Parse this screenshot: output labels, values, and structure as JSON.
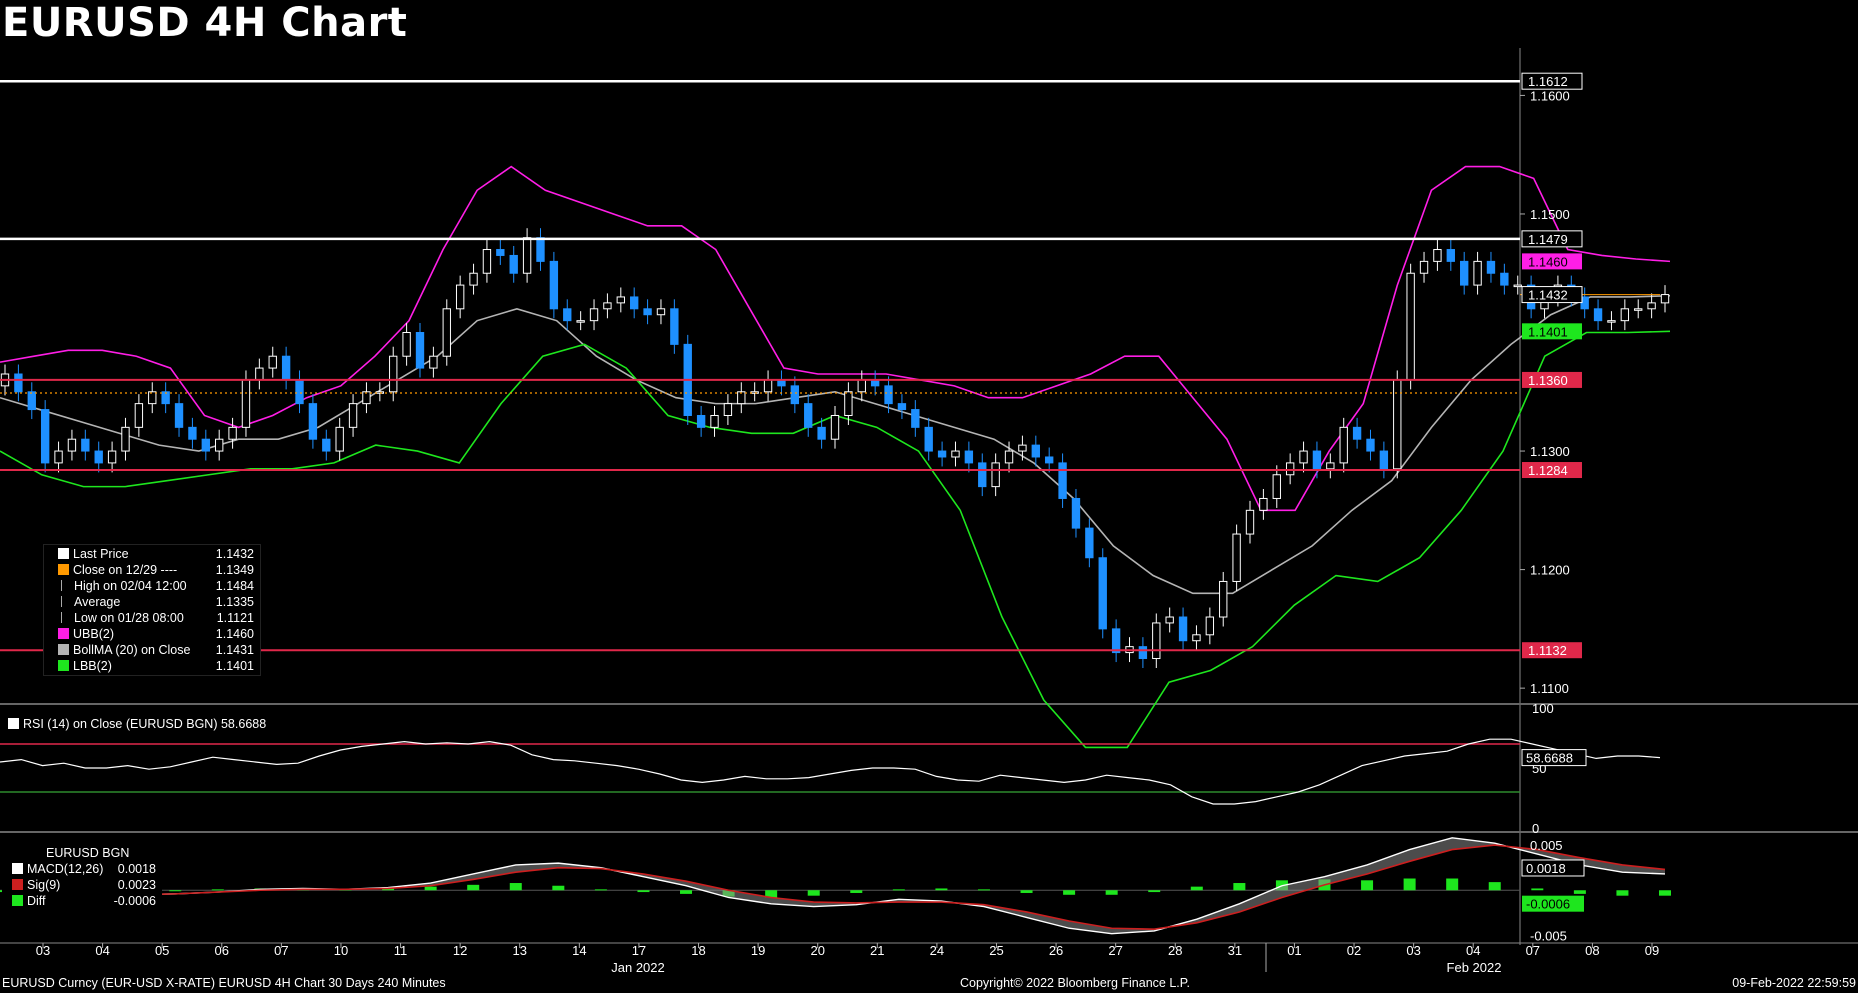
{
  "title": "EURUSD 4H Chart",
  "colors": {
    "bg": "#000000",
    "up": "#ffffff",
    "down": "#1e90ff",
    "ubb": "#ff1ee6",
    "lbb": "#1ee61e",
    "boll": "#b4b4b4",
    "level": "#e0284a",
    "white_level": "#ffffff",
    "rsi": "#ffffff",
    "macd": "#ffffff",
    "sig": "#cc1f1f",
    "diff": "#1ee61e"
  },
  "chart_data": [
    {
      "type": "candlestick",
      "title": "EURUSD 4H Chart",
      "x_ticks": [
        "03",
        "04",
        "05",
        "06",
        "07",
        "10",
        "11",
        "12",
        "13",
        "14",
        "17",
        "18",
        "19",
        "20",
        "21",
        "24",
        "25",
        "26",
        "27",
        "28",
        "31",
        "01",
        "02",
        "03",
        "04",
        "07",
        "08",
        "09"
      ],
      "x_month_labels": [
        "Jan 2022",
        "Feb 2022"
      ],
      "ylim": [
        1.109,
        1.164
      ],
      "y_ticks": [
        1.11,
        1.12,
        1.13,
        1.15,
        1.16
      ],
      "y_tick_labels": [
        "1.1100",
        "1.1200",
        "1.1300",
        "1.1500",
        "1.1600"
      ],
      "horizontal_levels": [
        {
          "value": 1.1612,
          "label": "1.1612",
          "color": "white"
        },
        {
          "value": 1.1479,
          "label": "1.1479",
          "color": "white"
        },
        {
          "value": 1.136,
          "label": "1.1360",
          "color": "red"
        },
        {
          "value": 1.1284,
          "label": "1.1284",
          "color": "red"
        },
        {
          "value": 1.1132,
          "label": "1.1132",
          "color": "red"
        }
      ],
      "price_tags": [
        {
          "value": 1.146,
          "label": "1.1460",
          "color": "magenta"
        },
        {
          "value": 1.1432,
          "label": "1.1432",
          "color": "white"
        },
        {
          "value": 1.1401,
          "label": "1.1401",
          "color": "green"
        }
      ],
      "average_line": 1.1349,
      "close": [
        1.1365,
        1.135,
        1.1335,
        1.129,
        1.13,
        1.131,
        1.13,
        1.129,
        1.13,
        1.132,
        1.134,
        1.135,
        1.134,
        1.132,
        1.131,
        1.13,
        1.131,
        1.132,
        1.136,
        1.137,
        1.138,
        1.136,
        1.134,
        1.131,
        1.13,
        1.132,
        1.134,
        1.135,
        1.135,
        1.138,
        1.14,
        1.137,
        1.138,
        1.142,
        1.144,
        1.145,
        1.147,
        1.1465,
        1.145,
        1.148,
        1.146,
        1.142,
        1.141,
        1.141,
        1.142,
        1.1425,
        1.143,
        1.142,
        1.1415,
        1.142,
        1.139,
        1.133,
        1.132,
        1.133,
        1.134,
        1.135,
        1.135,
        1.136,
        1.1355,
        1.134,
        1.132,
        1.131,
        1.133,
        1.135,
        1.136,
        1.1355,
        1.134,
        1.1335,
        1.132,
        1.13,
        1.1295,
        1.13,
        1.129,
        1.127,
        1.129,
        1.13,
        1.1305,
        1.1295,
        1.129,
        1.126,
        1.1235,
        1.121,
        1.115,
        1.113,
        1.1135,
        1.1125,
        1.1155,
        1.116,
        1.114,
        1.1145,
        1.116,
        1.119,
        1.123,
        1.125,
        1.126,
        1.128,
        1.129,
        1.13,
        1.1285,
        1.129,
        1.132,
        1.131,
        1.13,
        1.1285,
        1.136,
        1.145,
        1.146,
        1.147,
        1.146,
        1.144,
        1.146,
        1.145,
        1.144,
        1.144,
        1.142,
        1.143,
        1.144,
        1.143,
        1.142,
        1.141,
        1.141,
        1.142,
        1.142,
        1.1425,
        1.1432
      ],
      "ubb": [
        1.1375,
        1.138,
        1.1385,
        1.1385,
        1.138,
        1.137,
        1.133,
        1.132,
        1.133,
        1.1345,
        1.1355,
        1.138,
        1.141,
        1.147,
        1.152,
        1.154,
        1.152,
        1.151,
        1.15,
        1.149,
        1.149,
        1.147,
        1.142,
        1.137,
        1.1365,
        1.1365,
        1.1365,
        1.136,
        1.1355,
        1.1345,
        1.1345,
        1.1355,
        1.1365,
        1.138,
        1.138,
        1.1345,
        1.131,
        1.125,
        1.125,
        1.13,
        1.134,
        1.144,
        1.152,
        1.154,
        1.154,
        1.153,
        1.147,
        1.1465,
        1.1462,
        1.146
      ],
      "boll": [
        1.1345,
        1.1335,
        1.1325,
        1.1315,
        1.1305,
        1.13,
        1.131,
        1.131,
        1.132,
        1.134,
        1.136,
        1.138,
        1.141,
        1.142,
        1.141,
        1.138,
        1.136,
        1.1345,
        1.134,
        1.134,
        1.1345,
        1.135,
        1.134,
        1.133,
        1.132,
        1.131,
        1.129,
        1.126,
        1.122,
        1.1195,
        1.118,
        1.118,
        1.12,
        1.122,
        1.125,
        1.1275,
        1.132,
        1.136,
        1.139,
        1.1415,
        1.143,
        1.143,
        1.1431
      ],
      "lbb": [
        1.13,
        1.128,
        1.127,
        1.127,
        1.1275,
        1.128,
        1.1285,
        1.1285,
        1.129,
        1.1305,
        1.13,
        1.129,
        1.134,
        1.138,
        1.139,
        1.137,
        1.133,
        1.132,
        1.1315,
        1.1315,
        1.133,
        1.132,
        1.13,
        1.125,
        1.116,
        1.109,
        1.105,
        1.105,
        1.1105,
        1.1115,
        1.1135,
        1.117,
        1.1195,
        1.119,
        1.121,
        1.125,
        1.13,
        1.138,
        1.14,
        1.14,
        1.1401
      ]
    },
    {
      "type": "line",
      "title": "RSI (14) on Close (EURUSD BGN)",
      "series": [
        {
          "name": "RSI (14)",
          "last": 58.6688
        }
      ],
      "ylim": [
        0,
        100
      ],
      "y_ticks": [
        0,
        50,
        100
      ],
      "levels": [
        70,
        30
      ],
      "values": [
        55,
        57,
        52,
        54,
        50,
        50,
        52,
        49,
        51,
        55,
        59,
        57,
        55,
        53,
        54,
        60,
        65,
        68,
        70,
        72,
        70,
        71,
        70,
        72,
        69,
        61,
        57,
        56,
        54,
        52,
        49,
        45,
        40,
        38,
        40,
        43,
        41,
        41,
        42,
        45,
        48,
        50,
        50,
        49,
        43,
        40,
        39,
        44,
        42,
        40,
        38,
        40,
        44,
        42,
        40,
        36,
        26,
        20,
        20,
        22,
        26,
        30,
        36,
        44,
        52,
        56,
        60,
        62,
        64,
        70,
        74,
        74,
        70,
        66,
        62,
        58,
        60,
        60,
        58.6688
      ]
    },
    {
      "type": "line",
      "title": "EURUSD BGN",
      "series": [
        {
          "name": "MACD(12,26)",
          "last": 0.0018
        },
        {
          "name": "Sig(9)",
          "last": 0.0023
        },
        {
          "name": "Diff",
          "last": -0.0006
        }
      ],
      "ylim": [
        -0.0055,
        0.006
      ],
      "y_ticks": [
        -0.005,
        0.005
      ],
      "y_tick_labels": [
        "-0.005",
        "0.005"
      ],
      "macd": [
        -0.0006,
        -0.0007,
        -0.0006,
        -0.0005,
        -0.0004,
        -0.0002,
        0.0001,
        0.0002,
        0.0001,
        0.0003,
        0.0008,
        0.0018,
        0.0028,
        0.003,
        0.0025,
        0.0015,
        0.0005,
        -0.0008,
        -0.0015,
        -0.0018,
        -0.0016,
        -0.001,
        -0.0012,
        -0.0018,
        -0.003,
        -0.0042,
        -0.0048,
        -0.0045,
        -0.0032,
        -0.0015,
        0.0005,
        0.0015,
        0.0028,
        0.0045,
        0.0058,
        0.0052,
        0.004,
        0.0028,
        0.002,
        0.0018
      ],
      "signal": [
        -0.0005,
        -0.0006,
        -0.0006,
        -0.0005,
        -0.0004,
        -0.0002,
        0.0,
        0.0001,
        0.0001,
        0.0002,
        0.0005,
        0.0012,
        0.002,
        0.0025,
        0.0024,
        0.0018,
        0.001,
        0.0,
        -0.0008,
        -0.0013,
        -0.0014,
        -0.0013,
        -0.0013,
        -0.0016,
        -0.0024,
        -0.0034,
        -0.0042,
        -0.0043,
        -0.0036,
        -0.0024,
        -0.0008,
        0.0006,
        0.0018,
        0.0032,
        0.0045,
        0.005,
        0.0045,
        0.0036,
        0.0028,
        0.0023
      ],
      "diff": [
        -0.0002,
        -0.0002,
        0.0001,
        0.0001,
        0.0,
        0.0001,
        0.0002,
        0.0002,
        0.0001,
        0.0002,
        0.0004,
        0.0006,
        0.0008,
        0.0005,
        0.0001,
        -0.0002,
        -0.0004,
        -0.0007,
        -0.0008,
        -0.0006,
        -0.0003,
        0.0001,
        0.0002,
        0.0001,
        -0.0003,
        -0.0005,
        -0.0005,
        -0.0002,
        0.0004,
        0.0008,
        0.0011,
        0.0012,
        0.0011,
        0.0013,
        0.0013,
        0.0009,
        0.0002,
        -0.0004,
        -0.0006,
        -0.0006
      ]
    }
  ],
  "legend": [
    {
      "label": "Last Price",
      "value": "1.1432",
      "color": "#ffffff"
    },
    {
      "label": "Close on 12/29 ----",
      "value": "1.1349",
      "color": "#ff9900"
    },
    {
      "label": "High on 02/04 12:00",
      "value": "1.1484",
      "color": ""
    },
    {
      "label": "Average",
      "value": "1.1335",
      "color": ""
    },
    {
      "label": "Low on 01/28 08:00",
      "value": "1.1121",
      "color": ""
    },
    {
      "label": "UBB(2)",
      "value": "1.1460",
      "color": "#ff1ee6"
    },
    {
      "label": "BollMA (20)  on Close",
      "value": "1.1431",
      "color": "#b4b4b4"
    },
    {
      "label": "LBB(2)",
      "value": "1.1401",
      "color": "#1ee61e"
    }
  ],
  "rsi_legend": {
    "label": "RSI (14)  on Close (EURUSD BGN)",
    "value": "58.6688"
  },
  "rsi_tag": "58.6688",
  "rsi_axis": [
    "100",
    "50",
    "0"
  ],
  "macd_legend": {
    "title": "EURUSD BGN",
    "rows": [
      {
        "label": "MACD(12,26)",
        "value": "0.0018",
        "color": "#ffffff"
      },
      {
        "label": "Sig(9)",
        "value": "0.0023",
        "color": "#cc1f1f"
      },
      {
        "label": "Diff",
        "value": "-0.0006",
        "color": "#1ee61e"
      }
    ]
  },
  "macd_tags": [
    {
      "label": "0.0018",
      "color": "white"
    },
    {
      "label": "-0.0006",
      "color": "green"
    }
  ],
  "footer": {
    "left": "EURUSD Curncy (EUR-USD X-RATE) EURUSD 4H Chart 30 Days 240 Minutes",
    "middle": "Copyright© 2022 Bloomberg Finance L.P.",
    "right": "09-Feb-2022 22:59:59"
  }
}
